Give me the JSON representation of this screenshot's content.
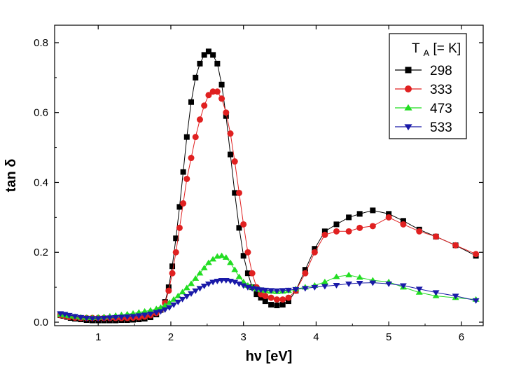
{
  "chart_data": {
    "type": "scatter",
    "xlabel": "hν  [eV]",
    "ylabel": "tan δ",
    "xlim": [
      0.4,
      6.3
    ],
    "ylim": [
      -0.01,
      0.85
    ],
    "grid": false,
    "legend_placement": "top-right",
    "xticks": [
      {
        "value": 1,
        "label": "1"
      },
      {
        "value": 2,
        "label": "2"
      },
      {
        "value": 3,
        "label": "3"
      },
      {
        "value": 4,
        "label": "4"
      },
      {
        "value": 5,
        "label": "5"
      },
      {
        "value": 6,
        "label": "6"
      }
    ],
    "yticks": [
      {
        "value": 0.0,
        "label": "0.0"
      },
      {
        "value": 0.2,
        "label": "0.2"
      },
      {
        "value": 0.4,
        "label": "0.4"
      },
      {
        "value": 0.6,
        "label": "0.6"
      },
      {
        "value": 0.8,
        "label": "0.8"
      }
    ],
    "legend": {
      "title_main": "T",
      "title_sub": "A",
      "title_rest": " [= K]"
    },
    "series": [
      {
        "name": "298",
        "color": "#000000",
        "marker": "square",
        "x": [
          0.48,
          0.52,
          0.57,
          0.62,
          0.68,
          0.76,
          0.84,
          0.92,
          1.0,
          1.08,
          1.16,
          1.24,
          1.32,
          1.4,
          1.48,
          1.56,
          1.64,
          1.72,
          1.8,
          1.86,
          1.92,
          1.97,
          2.02,
          2.07,
          2.12,
          2.17,
          2.22,
          2.28,
          2.34,
          2.4,
          2.46,
          2.52,
          2.58,
          2.64,
          2.7,
          2.76,
          2.82,
          2.88,
          2.94,
          3.0,
          3.06,
          3.12,
          3.18,
          3.24,
          3.3,
          3.38,
          3.46,
          3.54,
          3.62,
          3.72,
          3.85,
          3.98,
          4.12,
          4.28,
          4.45,
          4.6,
          4.78,
          5.0,
          5.2,
          5.42,
          5.65,
          5.92,
          6.2
        ],
        "values": [
          0.02,
          0.018,
          0.015,
          0.012,
          0.01,
          0.008,
          0.006,
          0.005,
          0.005,
          0.005,
          0.005,
          0.005,
          0.006,
          0.006,
          0.007,
          0.008,
          0.01,
          0.014,
          0.022,
          0.035,
          0.058,
          0.1,
          0.16,
          0.24,
          0.33,
          0.43,
          0.53,
          0.63,
          0.7,
          0.74,
          0.765,
          0.775,
          0.765,
          0.74,
          0.68,
          0.59,
          0.48,
          0.37,
          0.27,
          0.19,
          0.14,
          0.1,
          0.08,
          0.07,
          0.06,
          0.05,
          0.048,
          0.05,
          0.06,
          0.09,
          0.15,
          0.21,
          0.26,
          0.28,
          0.3,
          0.31,
          0.32,
          0.31,
          0.29,
          0.265,
          0.245,
          0.22,
          0.19
        ]
      },
      {
        "name": "333",
        "color": "#e02020",
        "marker": "circle",
        "x": [
          0.48,
          0.54,
          0.6,
          0.68,
          0.76,
          0.84,
          0.92,
          1.0,
          1.08,
          1.16,
          1.24,
          1.32,
          1.4,
          1.48,
          1.56,
          1.64,
          1.72,
          1.8,
          1.86,
          1.92,
          1.97,
          2.02,
          2.07,
          2.12,
          2.17,
          2.22,
          2.28,
          2.34,
          2.4,
          2.46,
          2.52,
          2.58,
          2.64,
          2.7,
          2.76,
          2.82,
          2.88,
          2.94,
          3.0,
          3.06,
          3.12,
          3.18,
          3.24,
          3.3,
          3.38,
          3.46,
          3.54,
          3.62,
          3.72,
          3.85,
          3.98,
          4.12,
          4.28,
          4.45,
          4.6,
          4.78,
          5.0,
          5.2,
          5.42,
          5.65,
          5.92,
          6.2
        ],
        "values": [
          0.02,
          0.018,
          0.015,
          0.013,
          0.012,
          0.012,
          0.012,
          0.012,
          0.012,
          0.012,
          0.012,
          0.012,
          0.012,
          0.013,
          0.014,
          0.016,
          0.02,
          0.026,
          0.036,
          0.055,
          0.09,
          0.14,
          0.2,
          0.27,
          0.34,
          0.41,
          0.47,
          0.53,
          0.58,
          0.62,
          0.65,
          0.66,
          0.66,
          0.64,
          0.6,
          0.54,
          0.46,
          0.37,
          0.28,
          0.2,
          0.14,
          0.1,
          0.08,
          0.075,
          0.07,
          0.065,
          0.065,
          0.07,
          0.09,
          0.14,
          0.2,
          0.25,
          0.26,
          0.26,
          0.27,
          0.275,
          0.3,
          0.28,
          0.26,
          0.245,
          0.22,
          0.195
        ]
      },
      {
        "name": "473",
        "color": "#22dd22",
        "marker": "triangle-up",
        "x": [
          0.48,
          0.54,
          0.6,
          0.68,
          0.76,
          0.84,
          0.92,
          1.0,
          1.08,
          1.16,
          1.24,
          1.32,
          1.4,
          1.48,
          1.56,
          1.64,
          1.72,
          1.8,
          1.86,
          1.92,
          1.98,
          2.04,
          2.1,
          2.16,
          2.22,
          2.28,
          2.34,
          2.4,
          2.46,
          2.52,
          2.58,
          2.64,
          2.7,
          2.76,
          2.82,
          2.88,
          2.94,
          3.0,
          3.06,
          3.12,
          3.18,
          3.24,
          3.3,
          3.38,
          3.46,
          3.54,
          3.62,
          3.72,
          3.85,
          3.98,
          4.12,
          4.28,
          4.45,
          4.6,
          4.78,
          5.0,
          5.2,
          5.42,
          5.65,
          5.92,
          6.2
        ],
        "values": [
          0.022,
          0.02,
          0.018,
          0.016,
          0.014,
          0.013,
          0.013,
          0.014,
          0.015,
          0.017,
          0.019,
          0.021,
          0.023,
          0.025,
          0.028,
          0.031,
          0.034,
          0.038,
          0.042,
          0.048,
          0.056,
          0.065,
          0.075,
          0.086,
          0.098,
          0.11,
          0.125,
          0.14,
          0.155,
          0.17,
          0.18,
          0.188,
          0.19,
          0.185,
          0.17,
          0.15,
          0.13,
          0.115,
          0.105,
          0.1,
          0.095,
          0.092,
          0.09,
          0.088,
          0.087,
          0.088,
          0.09,
          0.095,
          0.1,
          0.105,
          0.115,
          0.13,
          0.135,
          0.128,
          0.12,
          0.115,
          0.1,
          0.085,
          0.075,
          0.07,
          0.065
        ]
      },
      {
        "name": "533",
        "color": "#1a1aa8",
        "marker": "triangle-down",
        "x": [
          0.48,
          0.54,
          0.6,
          0.68,
          0.76,
          0.84,
          0.92,
          1.0,
          1.08,
          1.16,
          1.24,
          1.32,
          1.4,
          1.48,
          1.56,
          1.64,
          1.72,
          1.8,
          1.86,
          1.92,
          1.98,
          2.04,
          2.1,
          2.16,
          2.22,
          2.28,
          2.34,
          2.4,
          2.46,
          2.52,
          2.58,
          2.64,
          2.7,
          2.76,
          2.82,
          2.88,
          2.94,
          3.0,
          3.06,
          3.12,
          3.18,
          3.24,
          3.3,
          3.38,
          3.46,
          3.54,
          3.62,
          3.72,
          3.85,
          3.98,
          4.12,
          4.28,
          4.45,
          4.6,
          4.78,
          5.0,
          5.2,
          5.42,
          5.65,
          5.92,
          6.2
        ],
        "values": [
          0.025,
          0.023,
          0.02,
          0.017,
          0.014,
          0.012,
          0.011,
          0.011,
          0.012,
          0.013,
          0.014,
          0.015,
          0.016,
          0.017,
          0.019,
          0.021,
          0.024,
          0.028,
          0.031,
          0.036,
          0.042,
          0.05,
          0.058,
          0.066,
          0.074,
          0.082,
          0.09,
          0.097,
          0.104,
          0.11,
          0.115,
          0.118,
          0.12,
          0.12,
          0.118,
          0.115,
          0.11,
          0.105,
          0.1,
          0.097,
          0.095,
          0.093,
          0.092,
          0.091,
          0.09,
          0.091,
          0.092,
          0.094,
          0.097,
          0.1,
          0.103,
          0.106,
          0.11,
          0.112,
          0.113,
          0.11,
          0.105,
          0.095,
          0.085,
          0.075,
          0.062
        ]
      }
    ]
  }
}
